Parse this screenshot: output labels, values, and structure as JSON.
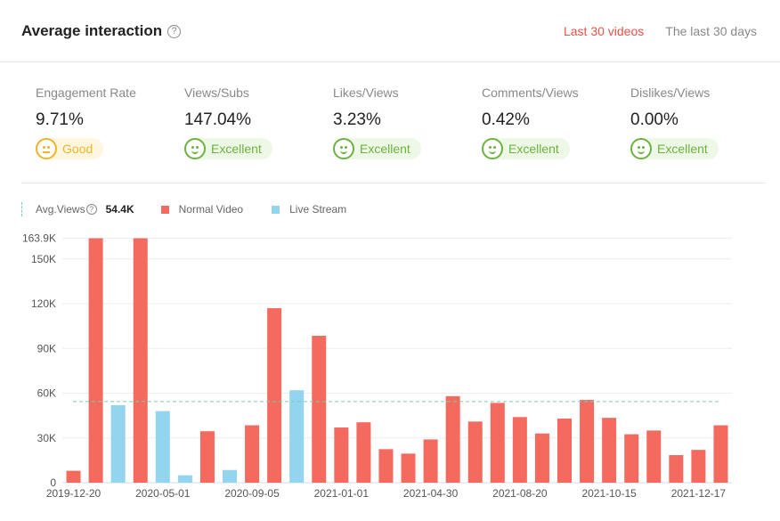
{
  "header": {
    "title": "Average interaction",
    "tabs": [
      {
        "label": "Last 30 videos",
        "active": true
      },
      {
        "label": "The last 30 days",
        "active": false
      }
    ]
  },
  "metrics": [
    {
      "label": "Engagement Rate",
      "value": "9.71%",
      "rating": "Good"
    },
    {
      "label": "Views/Subs",
      "value": "147.04%",
      "rating": "Excellent"
    },
    {
      "label": "Likes/Views",
      "value": "3.23%",
      "rating": "Excellent"
    },
    {
      "label": "Comments/Views",
      "value": "0.42%",
      "rating": "Excellent"
    },
    {
      "label": "Dislikes/Views",
      "value": "0.00%",
      "rating": "Excellent"
    }
  ],
  "legend": {
    "avg_label": "Avg.Views",
    "avg_value": "54.4K",
    "normal": "Normal Video",
    "live": "Live Stream"
  },
  "chart_data": {
    "type": "bar",
    "x_tick_labels": [
      "2019-12-20",
      "",
      "",
      "",
      "2020-05-01",
      "",
      "",
      "",
      "2020-09-05",
      "",
      "",
      "",
      "2021-01-01",
      "",
      "",
      "",
      "2021-04-30",
      "",
      "",
      "",
      "2021-08-20",
      "",
      "",
      "",
      "2021-10-15",
      "",
      "",
      "",
      "2021-12-17",
      ""
    ],
    "values": [
      8000,
      163900,
      52000,
      163900,
      48000,
      5000,
      34500,
      8500,
      38500,
      117000,
      62000,
      98500,
      37000,
      40500,
      22500,
      19500,
      29000,
      58000,
      41000,
      53500,
      44000,
      33000,
      43000,
      55500,
      43500,
      32500,
      35000,
      18500,
      22000,
      38500
    ],
    "types": [
      "normal",
      "normal",
      "live",
      "normal",
      "live",
      "live",
      "normal",
      "live",
      "normal",
      "normal",
      "live",
      "normal",
      "normal",
      "normal",
      "normal",
      "normal",
      "normal",
      "normal",
      "normal",
      "normal",
      "normal",
      "normal",
      "normal",
      "normal",
      "normal",
      "normal",
      "normal",
      "normal",
      "normal",
      "normal"
    ],
    "series": [
      {
        "name": "Normal Video",
        "color": "#f46a5e"
      },
      {
        "name": "Live Stream",
        "color": "#93d4ee"
      }
    ],
    "average": 54400,
    "y_ticks": [
      0,
      30000,
      60000,
      90000,
      120000,
      150000,
      163900
    ],
    "y_tick_labels": [
      "0",
      "30K",
      "60K",
      "90K",
      "120K",
      "150K",
      "163.9K"
    ],
    "ylim": [
      0,
      163900
    ],
    "grid": true
  }
}
